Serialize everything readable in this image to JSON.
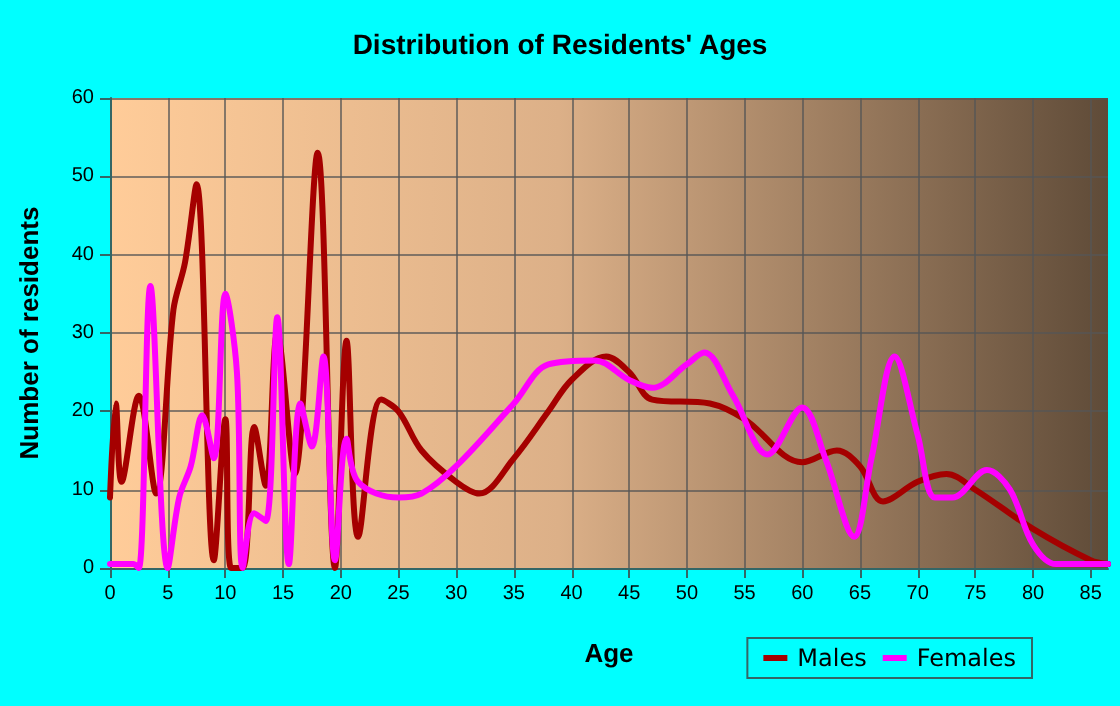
{
  "chart_data": {
    "type": "line",
    "title": "Distribution of Residents' Ages",
    "xlabel": "Age",
    "ylabel": "Number of residents",
    "xlim": [
      0,
      86.5
    ],
    "xticks": [
      0,
      5,
      10,
      15,
      20,
      25,
      30,
      35,
      40,
      45,
      50,
      55,
      60,
      65,
      70,
      75,
      80,
      85
    ],
    "ylim": [
      0,
      60
    ],
    "yticks": [
      0,
      10,
      20,
      30,
      40,
      50,
      60
    ],
    "grid": true,
    "legend": "bottom right",
    "marker": "none",
    "line_style": "solid",
    "series": [
      {
        "name": "Males",
        "color": "#a50000",
        "x": [
          0,
          0.5,
          1,
          2.5,
          4,
          5.5,
          6.5,
          7.5,
          9,
          10,
          10.5,
          11.5,
          12.5,
          13.5,
          14.5,
          16,
          18,
          19.5,
          20.5,
          21.5,
          23.5,
          25,
          27,
          30,
          32,
          35,
          38,
          40,
          43,
          45,
          47,
          52,
          55,
          60,
          63,
          65,
          67,
          70,
          72.5,
          75,
          80,
          85,
          86.5
        ],
        "values": [
          9,
          21,
          11,
          22,
          9.5,
          33,
          39,
          49,
          1,
          19,
          0,
          0,
          18,
          10.5,
          30,
          12,
          53,
          0,
          29,
          4,
          21.5,
          20,
          15,
          11,
          9.5,
          14,
          20,
          24,
          27,
          25,
          21.5,
          21,
          19,
          13.5,
          15,
          13,
          8.5,
          11,
          12,
          10,
          5,
          1,
          0.5
        ]
      },
      {
        "name": "Females",
        "color": "#ff00ff",
        "x": [
          0,
          2,
          2.5,
          3.5,
          5,
          6,
          7,
          8,
          9,
          10,
          11,
          11.5,
          12.5,
          13.5,
          14.5,
          15.5,
          16.5,
          17.5,
          18.5,
          19.5,
          20.5,
          21.5,
          25,
          27,
          30,
          35,
          38,
          42,
          45,
          47,
          50,
          51.5,
          54,
          57,
          60,
          62,
          64.5,
          66,
          68,
          70,
          71.5,
          73,
          76,
          78,
          80,
          82,
          86.5
        ],
        "values": [
          0.5,
          0.5,
          0,
          36,
          0,
          9,
          13,
          19.5,
          14,
          35,
          25,
          0,
          7,
          6,
          32,
          0.5,
          21,
          15.5,
          27,
          1,
          16.5,
          11,
          9,
          9.5,
          13,
          21,
          26,
          26.5,
          24,
          23,
          26,
          27.5,
          22,
          14.5,
          20.5,
          14,
          4,
          14,
          27,
          17,
          9,
          9,
          12.5,
          10,
          3,
          0.5,
          0.5
        ]
      }
    ]
  }
}
